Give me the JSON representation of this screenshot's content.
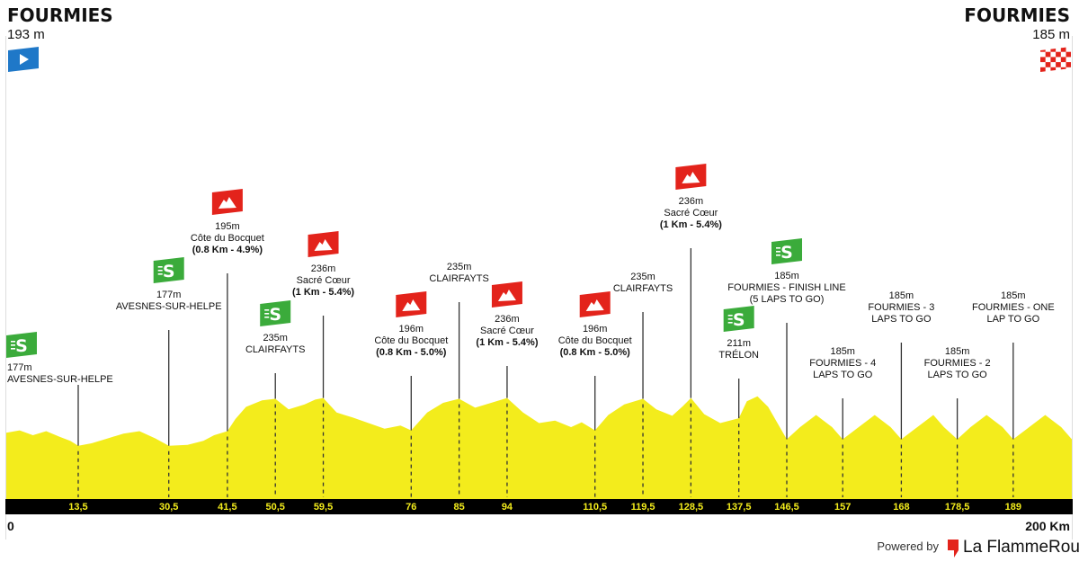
{
  "start": {
    "name": "FOURMIES",
    "altitude": "193 m"
  },
  "finish": {
    "name": "FOURMIES",
    "altitude": "185 m"
  },
  "icons": {
    "start": "start-flag-icon",
    "finish": "finish-flag-icon",
    "sprint": "sprint-icon",
    "climb": "mountain-icon",
    "brand": "flame-rouge-logo-icon"
  },
  "colors": {
    "profile": "#f3ec1c",
    "axis_bar": "#000000",
    "km_text": "#f3ec1c",
    "climb": "#e3231b",
    "sprint": "#3bab3b",
    "start": "#1f78c8",
    "finish": "#e3231b"
  },
  "axis": {
    "start_label": "0",
    "end_label": "200 Km"
  },
  "footer": {
    "powered": "Powered by",
    "brand": "La FlammeRouge"
  },
  "chart_data": {
    "type": "area",
    "title": "",
    "xlabel": "",
    "ylabel": "",
    "xlim": [
      0,
      200
    ],
    "x_unit": "km",
    "y_unit": "m",
    "start": {
      "km": 0,
      "altitude": 193
    },
    "finish": {
      "km": 200,
      "altitude": 185
    },
    "profile": [
      {
        "km": 0,
        "alt": 193
      },
      {
        "km": 2.5,
        "alt": 196
      },
      {
        "km": 5,
        "alt": 190
      },
      {
        "km": 7.5,
        "alt": 195
      },
      {
        "km": 10,
        "alt": 188
      },
      {
        "km": 12,
        "alt": 183
      },
      {
        "km": 13.5,
        "alt": 177
      },
      {
        "km": 16,
        "alt": 180
      },
      {
        "km": 19,
        "alt": 186
      },
      {
        "km": 22,
        "alt": 192
      },
      {
        "km": 25,
        "alt": 195
      },
      {
        "km": 28,
        "alt": 186
      },
      {
        "km": 30.5,
        "alt": 177
      },
      {
        "km": 34,
        "alt": 178
      },
      {
        "km": 37,
        "alt": 183
      },
      {
        "km": 39,
        "alt": 190
      },
      {
        "km": 41.5,
        "alt": 195
      },
      {
        "km": 43,
        "alt": 210
      },
      {
        "km": 45,
        "alt": 225
      },
      {
        "km": 48,
        "alt": 233
      },
      {
        "km": 50.5,
        "alt": 235
      },
      {
        "km": 53,
        "alt": 222
      },
      {
        "km": 56,
        "alt": 228
      },
      {
        "km": 58,
        "alt": 234
      },
      {
        "km": 59.5,
        "alt": 236
      },
      {
        "km": 62,
        "alt": 218
      },
      {
        "km": 65,
        "alt": 212
      },
      {
        "km": 68,
        "alt": 205
      },
      {
        "km": 71,
        "alt": 198
      },
      {
        "km": 74,
        "alt": 202
      },
      {
        "km": 76,
        "alt": 196
      },
      {
        "km": 79,
        "alt": 218
      },
      {
        "km": 82,
        "alt": 230
      },
      {
        "km": 85,
        "alt": 235
      },
      {
        "km": 88,
        "alt": 224
      },
      {
        "km": 91,
        "alt": 230
      },
      {
        "km": 94,
        "alt": 236
      },
      {
        "km": 97,
        "alt": 218
      },
      {
        "km": 100,
        "alt": 205
      },
      {
        "km": 103,
        "alt": 208
      },
      {
        "km": 106,
        "alt": 200
      },
      {
        "km": 108,
        "alt": 206
      },
      {
        "km": 110.5,
        "alt": 196
      },
      {
        "km": 113,
        "alt": 215
      },
      {
        "km": 116,
        "alt": 228
      },
      {
        "km": 119.5,
        "alt": 235
      },
      {
        "km": 122,
        "alt": 222
      },
      {
        "km": 125,
        "alt": 214
      },
      {
        "km": 127,
        "alt": 226
      },
      {
        "km": 128.5,
        "alt": 236
      },
      {
        "km": 131,
        "alt": 216
      },
      {
        "km": 134,
        "alt": 205
      },
      {
        "km": 137.5,
        "alt": 211
      },
      {
        "km": 139,
        "alt": 232
      },
      {
        "km": 141,
        "alt": 238
      },
      {
        "km": 143,
        "alt": 225
      },
      {
        "km": 146.5,
        "alt": 185
      },
      {
        "km": 149,
        "alt": 200
      },
      {
        "km": 152,
        "alt": 215
      },
      {
        "km": 155,
        "alt": 200
      },
      {
        "km": 157,
        "alt": 185
      },
      {
        "km": 160,
        "alt": 200
      },
      {
        "km": 163,
        "alt": 215
      },
      {
        "km": 166,
        "alt": 200
      },
      {
        "km": 168,
        "alt": 185
      },
      {
        "km": 171,
        "alt": 200
      },
      {
        "km": 174,
        "alt": 215
      },
      {
        "km": 176,
        "alt": 200
      },
      {
        "km": 178.5,
        "alt": 185
      },
      {
        "km": 181,
        "alt": 200
      },
      {
        "km": 184,
        "alt": 215
      },
      {
        "km": 187,
        "alt": 200
      },
      {
        "km": 189,
        "alt": 185
      },
      {
        "km": 192,
        "alt": 200
      },
      {
        "km": 195,
        "alt": 215
      },
      {
        "km": 198,
        "alt": 200
      },
      {
        "km": 200,
        "alt": 185
      }
    ],
    "km_markers": [
      "13,5",
      "30,5",
      "41,5",
      "50,5",
      "59,5",
      "76",
      "85",
      "94",
      "110,5",
      "119,5",
      "128,5",
      "137,5",
      "146,5",
      "157",
      "168",
      "178,5",
      "189"
    ],
    "waypoints": [
      {
        "km": 13.5,
        "km_label": "13,5",
        "icon": "sprint",
        "altitude": "177m",
        "name": "AVESNES-SUR-HELPE",
        "detail": ""
      },
      {
        "km": 30.5,
        "km_label": "30,5",
        "icon": "sprint",
        "altitude": "177m",
        "name": "AVESNES-SUR-HELPE",
        "detail": ""
      },
      {
        "km": 41.5,
        "km_label": "41,5",
        "icon": "climb",
        "altitude": "195m",
        "name": "Côte du Bocquet",
        "detail": "(0.8 Km - 4.9%)"
      },
      {
        "km": 50.5,
        "km_label": "50,5",
        "icon": "sprint",
        "altitude": "235m",
        "name": "CLAIRFAYTS",
        "detail": ""
      },
      {
        "km": 59.5,
        "km_label": "59,5",
        "icon": "climb",
        "altitude": "236m",
        "name": "Sacré Cœur",
        "detail": "(1 Km - 5.4%)"
      },
      {
        "km": 76,
        "km_label": "76",
        "icon": "climb",
        "altitude": "196m",
        "name": "Côte du Bocquet",
        "detail": "(0.8 Km - 5.0%)"
      },
      {
        "km": 85,
        "km_label": "85",
        "icon": "none",
        "altitude": "235m",
        "name": "CLAIRFAYTS",
        "detail": ""
      },
      {
        "km": 94,
        "km_label": "94",
        "icon": "climb",
        "altitude": "236m",
        "name": "Sacré Cœur",
        "detail": "(1 Km - 5.4%)"
      },
      {
        "km": 110.5,
        "km_label": "110,5",
        "icon": "climb",
        "altitude": "196m",
        "name": "Côte du Bocquet",
        "detail": "(0.8 Km - 5.0%)"
      },
      {
        "km": 119.5,
        "km_label": "119,5",
        "icon": "none",
        "altitude": "235m",
        "name": "CLAIRFAYTS",
        "detail": ""
      },
      {
        "km": 128.5,
        "km_label": "128,5",
        "icon": "climb",
        "altitude": "236m",
        "name": "Sacré Cœur",
        "detail": "(1 Km - 5.4%)"
      },
      {
        "km": 137.5,
        "km_label": "137,5",
        "icon": "sprint",
        "altitude": "211m",
        "name": "TRÉLON",
        "detail": ""
      },
      {
        "km": 146.5,
        "km_label": "146,5",
        "icon": "sprint",
        "altitude": "185m",
        "name": "FOURMIES - FINISH LINE",
        "detail": "(5 LAPS TO GO)"
      },
      {
        "km": 157,
        "km_label": "157",
        "icon": "none",
        "altitude": "185m",
        "name": "FOURMIES - 4",
        "detail": "LAPS TO GO"
      },
      {
        "km": 168,
        "km_label": "168",
        "icon": "none",
        "altitude": "185m",
        "name": "FOURMIES - 3",
        "detail": "LAPS TO GO"
      },
      {
        "km": 178.5,
        "km_label": "178,5",
        "icon": "none",
        "altitude": "185m",
        "name": "FOURMIES - 2",
        "detail": "LAPS TO GO"
      },
      {
        "km": 189,
        "km_label": "189",
        "icon": "none",
        "altitude": "185m",
        "name": "FOURMIES - ONE",
        "detail": "LAP TO GO"
      }
    ]
  }
}
